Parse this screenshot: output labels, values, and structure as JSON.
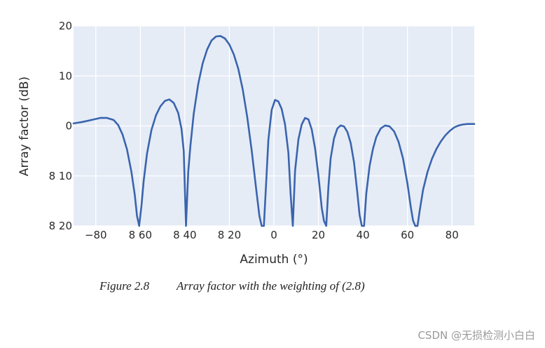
{
  "chart_data": {
    "type": "line",
    "title": "",
    "xlabel": "Azimuth (°)",
    "ylabel": "Array factor (dB)",
    "xlim": [
      -90,
      90
    ],
    "ylim": [
      -20,
      20
    ],
    "grid": true,
    "background": "#e5ecf6",
    "line_color": "#3b64ad",
    "x_ticks": [
      {
        "value": -80,
        "label": "−80"
      },
      {
        "value": -60,
        "label": "8 60"
      },
      {
        "value": -40,
        "label": "8 40"
      },
      {
        "value": -20,
        "label": "8 20"
      },
      {
        "value": 0,
        "label": "0"
      },
      {
        "value": 20,
        "label": "20"
      },
      {
        "value": 40,
        "label": "40"
      },
      {
        "value": 60,
        "label": "60"
      },
      {
        "value": 80,
        "label": "80"
      }
    ],
    "y_ticks": [
      {
        "value": 20,
        "label": "20"
      },
      {
        "value": 10,
        "label": "10"
      },
      {
        "value": 0,
        "label": "0"
      },
      {
        "value": -10,
        "label": "8 10"
      },
      {
        "value": -20,
        "label": "8 20"
      }
    ],
    "series": [
      {
        "x": [
          -90,
          -86,
          -82,
          -78,
          -75,
          -72,
          -70,
          -68,
          -66,
          -64,
          -62.5,
          -61.5,
          -60.5,
          -59.5,
          -58.5,
          -57,
          -55,
          -53,
          -51,
          -49,
          -47,
          -45,
          -43,
          -41.5,
          -40.5,
          -39.5,
          -38.5,
          -37.5,
          -36,
          -34,
          -32,
          -30,
          -28,
          -26,
          -24,
          -22,
          -20,
          -18,
          -16,
          -14,
          -12,
          -10,
          -8,
          -6.5,
          -5.5,
          -4.5,
          -3.5,
          -2.5,
          -1,
          0.5,
          2,
          3.5,
          5,
          6.5,
          7.5,
          8.5,
          9.5,
          11,
          12.5,
          14,
          15.5,
          17,
          18.5,
          20,
          21.5,
          22.5,
          23.5,
          24.5,
          25.5,
          27,
          28.5,
          30,
          31.5,
          33,
          34.5,
          36,
          37.5,
          38.5,
          39.5,
          40.5,
          41.5,
          43,
          44.5,
          46,
          48,
          50,
          52,
          54,
          56,
          58,
          60,
          61.5,
          62.5,
          63.5,
          64.5,
          65.5,
          67,
          69,
          71,
          73,
          75,
          77,
          79,
          81,
          83,
          85,
          87,
          89,
          90
        ],
        "y": [
          0.5,
          0.8,
          1.2,
          1.6,
          1.6,
          1.2,
          0.2,
          -1.7,
          -4.7,
          -9.2,
          -13.8,
          -18,
          -20,
          -16,
          -11,
          -5.5,
          -0.8,
          2.1,
          3.9,
          5,
          5.3,
          4.6,
          2.6,
          -0.6,
          -5,
          -20,
          -9.2,
          -4,
          2.5,
          8.4,
          12.5,
          15.3,
          17.1,
          17.9,
          18.0,
          17.5,
          16.3,
          14.3,
          11.4,
          7.3,
          1.8,
          -4.8,
          -12.5,
          -18,
          -20,
          -20,
          -11.5,
          -2.8,
          3.2,
          5.2,
          4.9,
          3.4,
          0.3,
          -5.4,
          -13.5,
          -20,
          -9,
          -2.7,
          0.3,
          1.6,
          1.3,
          -0.7,
          -4.5,
          -10,
          -16.4,
          -19,
          -20,
          -12,
          -6.5,
          -2.5,
          -0.5,
          0.1,
          -0.1,
          -1.2,
          -3.4,
          -7.3,
          -13.5,
          -17.8,
          -20,
          -20,
          -13.5,
          -8,
          -4.6,
          -2.2,
          -0.5,
          0.1,
          -0.1,
          -1.1,
          -3.2,
          -6.5,
          -11.6,
          -16.2,
          -18.9,
          -20,
          -20,
          -17,
          -12.8,
          -9.2,
          -6.6,
          -4.6,
          -3.1,
          -1.9,
          -1,
          -0.3,
          0.1,
          0.3,
          0.4,
          0.4,
          0.4
        ]
      }
    ]
  },
  "caption": {
    "figure_number": "Figure 2.8",
    "text": "Array factor with the weighting of (2.8)"
  },
  "watermark": "CSDN @无损检测小白白"
}
